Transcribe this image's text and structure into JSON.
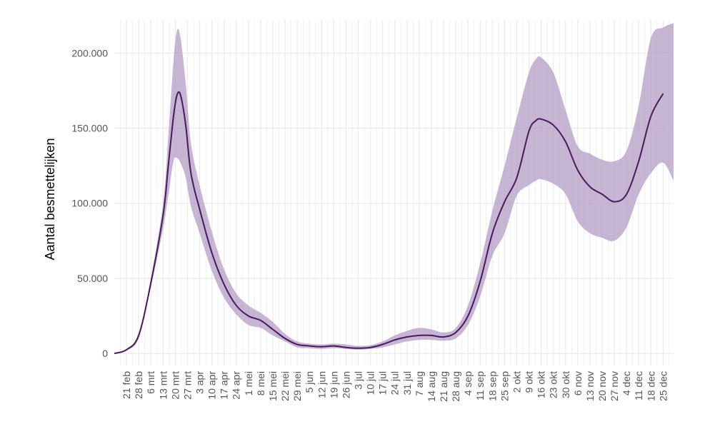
{
  "chart_data": {
    "type": "area",
    "title": "",
    "xlabel": "",
    "ylabel": "Aantal besmettelijken",
    "grid": true,
    "legend": "none",
    "colors": {
      "line": "#4a1a5e",
      "band": "#b39cc4",
      "grid": "#ebebeb"
    },
    "ylim": [
      -8000,
      222000
    ],
    "yticks": [
      {
        "value": 0,
        "label": "0"
      },
      {
        "value": 50000,
        "label": "50.000"
      },
      {
        "value": 100000,
        "label": "100.000"
      },
      {
        "value": 150000,
        "label": "150.000"
      },
      {
        "value": 200000,
        "label": "200.000"
      }
    ],
    "xlim": [
      "2020-02-14",
      "2020-12-31"
    ],
    "xticks": [
      {
        "date": "2020-02-21",
        "label": "21 feb"
      },
      {
        "date": "2020-02-28",
        "label": "28 feb"
      },
      {
        "date": "2020-03-06",
        "label": "6 mrt"
      },
      {
        "date": "2020-03-13",
        "label": "13 mrt"
      },
      {
        "date": "2020-03-20",
        "label": "20 mrt"
      },
      {
        "date": "2020-03-27",
        "label": "27 mrt"
      },
      {
        "date": "2020-04-03",
        "label": "3 apr"
      },
      {
        "date": "2020-04-10",
        "label": "10 apr"
      },
      {
        "date": "2020-04-17",
        "label": "17 apr"
      },
      {
        "date": "2020-04-24",
        "label": "24 apr"
      },
      {
        "date": "2020-05-01",
        "label": "1 mei"
      },
      {
        "date": "2020-05-08",
        "label": "8 mei"
      },
      {
        "date": "2020-05-15",
        "label": "15 mei"
      },
      {
        "date": "2020-05-22",
        "label": "22 mei"
      },
      {
        "date": "2020-05-29",
        "label": "29 mei"
      },
      {
        "date": "2020-06-05",
        "label": "5 jun"
      },
      {
        "date": "2020-06-12",
        "label": "12 jun"
      },
      {
        "date": "2020-06-19",
        "label": "19 jun"
      },
      {
        "date": "2020-06-26",
        "label": "26 jun"
      },
      {
        "date": "2020-07-03",
        "label": "3 jul"
      },
      {
        "date": "2020-07-10",
        "label": "10 jul"
      },
      {
        "date": "2020-07-17",
        "label": "17 jul"
      },
      {
        "date": "2020-07-24",
        "label": "24 jul"
      },
      {
        "date": "2020-07-31",
        "label": "31 jul"
      },
      {
        "date": "2020-08-07",
        "label": "7 aug"
      },
      {
        "date": "2020-08-14",
        "label": "14 aug"
      },
      {
        "date": "2020-08-21",
        "label": "21 aug"
      },
      {
        "date": "2020-08-28",
        "label": "28 aug"
      },
      {
        "date": "2020-09-04",
        "label": "4 sep"
      },
      {
        "date": "2020-09-11",
        "label": "11 sep"
      },
      {
        "date": "2020-09-18",
        "label": "18 sep"
      },
      {
        "date": "2020-09-25",
        "label": "25 sep"
      },
      {
        "date": "2020-10-02",
        "label": "2 okt"
      },
      {
        "date": "2020-10-09",
        "label": "9 okt"
      },
      {
        "date": "2020-10-16",
        "label": "16 okt"
      },
      {
        "date": "2020-10-23",
        "label": "23 okt"
      },
      {
        "date": "2020-10-30",
        "label": "30 okt"
      },
      {
        "date": "2020-11-06",
        "label": "6 nov"
      },
      {
        "date": "2020-11-13",
        "label": "13 nov"
      },
      {
        "date": "2020-11-20",
        "label": "20 nov"
      },
      {
        "date": "2020-11-27",
        "label": "27 nov"
      },
      {
        "date": "2020-12-04",
        "label": "4 dec"
      },
      {
        "date": "2020-12-11",
        "label": "11 dec"
      },
      {
        "date": "2020-12-18",
        "label": "18 dec"
      },
      {
        "date": "2020-12-25",
        "label": "25 dec"
      }
    ],
    "series": [
      {
        "role": "estimate",
        "x": [
          "2020-02-14",
          "2020-02-21",
          "2020-02-28",
          "2020-03-06",
          "2020-03-13",
          "2020-03-16",
          "2020-03-19",
          "2020-03-21",
          "2020-03-23",
          "2020-03-26",
          "2020-03-29",
          "2020-04-03",
          "2020-04-10",
          "2020-04-17",
          "2020-04-24",
          "2020-05-01",
          "2020-05-08",
          "2020-05-15",
          "2020-05-22",
          "2020-05-29",
          "2020-06-05",
          "2020-06-12",
          "2020-06-19",
          "2020-06-26",
          "2020-07-03",
          "2020-07-10",
          "2020-07-17",
          "2020-07-24",
          "2020-07-31",
          "2020-08-07",
          "2020-08-14",
          "2020-08-21",
          "2020-08-28",
          "2020-09-04",
          "2020-09-11",
          "2020-09-18",
          "2020-09-25",
          "2020-10-02",
          "2020-10-09",
          "2020-10-13",
          "2020-10-16",
          "2020-10-23",
          "2020-10-30",
          "2020-11-06",
          "2020-11-13",
          "2020-11-20",
          "2020-11-27",
          "2020-12-04",
          "2020-12-11",
          "2020-12-18",
          "2020-12-25"
        ],
        "values": [
          0,
          2500,
          12000,
          47000,
          92000,
          125000,
          158000,
          172000,
          172000,
          152000,
          120000,
          96000,
          67000,
          46000,
          32000,
          25000,
          22000,
          16000,
          10000,
          6000,
          5000,
          4500,
          5000,
          4000,
          3500,
          4000,
          6000,
          9000,
          11000,
          12000,
          12000,
          11000,
          14000,
          25000,
          48000,
          80000,
          101000,
          117000,
          148000,
          155000,
          156000,
          152000,
          141000,
          122000,
          111000,
          106000,
          101000,
          106000,
          128000,
          158000,
          173000
        ]
      },
      {
        "role": "band-upper",
        "x": [
          "2020-02-14",
          "2020-02-21",
          "2020-02-28",
          "2020-03-06",
          "2020-03-13",
          "2020-03-16",
          "2020-03-19",
          "2020-03-21",
          "2020-03-23",
          "2020-03-26",
          "2020-03-29",
          "2020-04-03",
          "2020-04-10",
          "2020-04-17",
          "2020-04-24",
          "2020-05-01",
          "2020-05-08",
          "2020-05-15",
          "2020-05-22",
          "2020-05-29",
          "2020-06-05",
          "2020-06-12",
          "2020-06-19",
          "2020-06-26",
          "2020-07-03",
          "2020-07-10",
          "2020-07-17",
          "2020-07-24",
          "2020-07-31",
          "2020-08-07",
          "2020-08-14",
          "2020-08-21",
          "2020-08-28",
          "2020-09-04",
          "2020-09-11",
          "2020-09-18",
          "2020-09-25",
          "2020-10-02",
          "2020-10-09",
          "2020-10-13",
          "2020-10-16",
          "2020-10-23",
          "2020-10-30",
          "2020-11-06",
          "2020-11-13",
          "2020-11-20",
          "2020-11-27",
          "2020-12-04",
          "2020-12-11",
          "2020-12-18",
          "2020-12-25",
          "2020-12-31"
        ],
        "values": [
          0,
          2500,
          12000,
          50000,
          100000,
          145000,
          195000,
          215000,
          210000,
          180000,
          140000,
          112000,
          81000,
          56000,
          40000,
          32000,
          27000,
          21000,
          13000,
          8000,
          6500,
          6000,
          6500,
          6000,
          5000,
          5500,
          8000,
          12000,
          15000,
          17000,
          16000,
          14000,
          17000,
          32000,
          60000,
          95000,
          125000,
          157000,
          187000,
          196000,
          197000,
          187000,
          162000,
          138000,
          133000,
          129000,
          128000,
          135000,
          165000,
          210000,
          217000,
          220000
        ]
      },
      {
        "role": "band-lower",
        "x": [
          "2020-02-14",
          "2020-02-21",
          "2020-02-28",
          "2020-03-06",
          "2020-03-13",
          "2020-03-16",
          "2020-03-19",
          "2020-03-21",
          "2020-03-23",
          "2020-03-26",
          "2020-03-29",
          "2020-04-03",
          "2020-04-10",
          "2020-04-17",
          "2020-04-24",
          "2020-05-01",
          "2020-05-08",
          "2020-05-15",
          "2020-05-22",
          "2020-05-29",
          "2020-06-05",
          "2020-06-12",
          "2020-06-19",
          "2020-06-26",
          "2020-07-03",
          "2020-07-10",
          "2020-07-17",
          "2020-07-24",
          "2020-07-31",
          "2020-08-07",
          "2020-08-14",
          "2020-08-21",
          "2020-08-28",
          "2020-09-04",
          "2020-09-11",
          "2020-09-18",
          "2020-09-25",
          "2020-10-02",
          "2020-10-09",
          "2020-10-13",
          "2020-10-16",
          "2020-10-23",
          "2020-10-30",
          "2020-11-06",
          "2020-11-13",
          "2020-11-20",
          "2020-11-27",
          "2020-12-04",
          "2020-12-11",
          "2020-12-18",
          "2020-12-25",
          "2020-12-31"
        ],
        "values": [
          0,
          2000,
          10000,
          44000,
          83000,
          105000,
          128000,
          130000,
          127000,
          117000,
          98000,
          80000,
          55000,
          37000,
          26000,
          19000,
          17000,
          12000,
          8000,
          4000,
          3500,
          3000,
          3500,
          3000,
          2500,
          3000,
          4000,
          6000,
          8000,
          9000,
          9000,
          8500,
          10000,
          19000,
          38000,
          65000,
          80000,
          105000,
          112000,
          115000,
          116000,
          113000,
          106000,
          88000,
          80000,
          77000,
          75000,
          84000,
          106000,
          120000,
          127000,
          115000
        ]
      }
    ]
  }
}
